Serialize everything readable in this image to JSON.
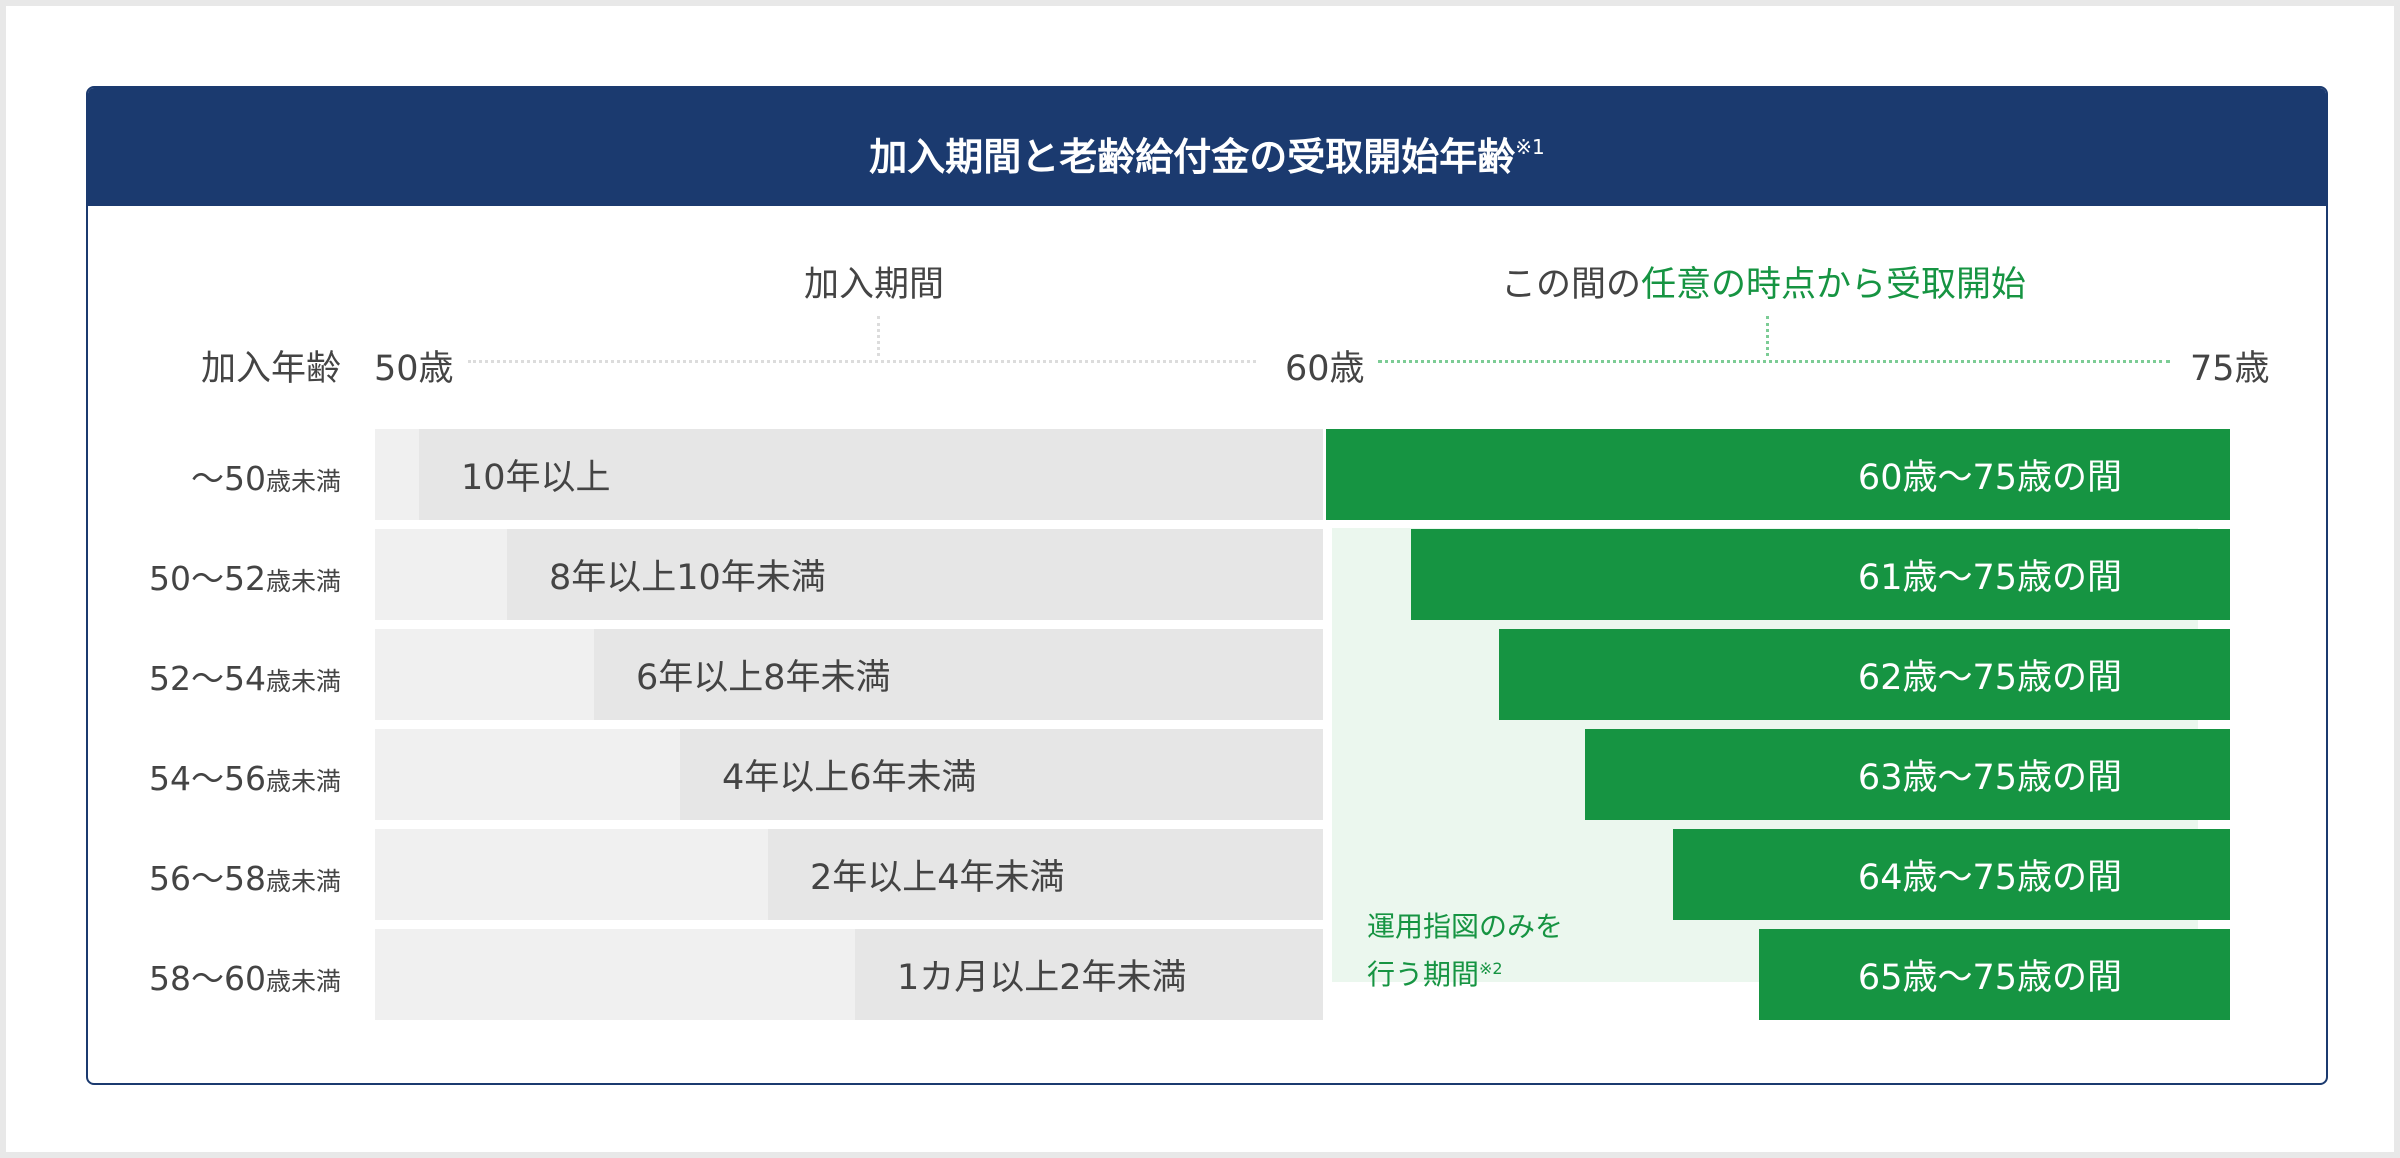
{
  "title": {
    "text": "加入期間と老齢給付金の受取開始年齢",
    "note_mark": "※1"
  },
  "headers": {
    "period": "加入期間",
    "receive_prefix": "この間の",
    "receive_highlight": "任意の時点から受取開始"
  },
  "scale": {
    "row_header": "加入年齢",
    "start": "50歳",
    "mid": "60歳",
    "end": "75歳"
  },
  "rows": [
    {
      "age_main": "〜50",
      "age_suffix": "歳未満",
      "period": "10年以上",
      "receive": "60歳〜75歳の間"
    },
    {
      "age_main": "50〜52",
      "age_suffix": "歳未満",
      "period": "8年以上10年未満",
      "receive": "61歳〜75歳の間"
    },
    {
      "age_main": "52〜54",
      "age_suffix": "歳未満",
      "period": "6年以上8年未満",
      "receive": "62歳〜75歳の間"
    },
    {
      "age_main": "54〜56",
      "age_suffix": "歳未満",
      "period": "4年以上6年未満",
      "receive": "63歳〜75歳の間"
    },
    {
      "age_main": "56〜58",
      "age_suffix": "歳未満",
      "period": "2年以上4年未満",
      "receive": "64歳〜75歳の間"
    },
    {
      "age_main": "58〜60",
      "age_suffix": "歳未満",
      "period": "1カ月以上2年未満",
      "receive": "65歳〜75歳の間"
    }
  ],
  "operation_note": {
    "line1": "運用指図のみを",
    "line2": "行う期間",
    "mark": "※2"
  },
  "colors": {
    "header_bg": "#1b3a6f",
    "green": "#169442",
    "pale_green": "#ebf7ee",
    "gray_bar": "#e6e6e6",
    "light_gray": "#f0f0f0"
  }
}
